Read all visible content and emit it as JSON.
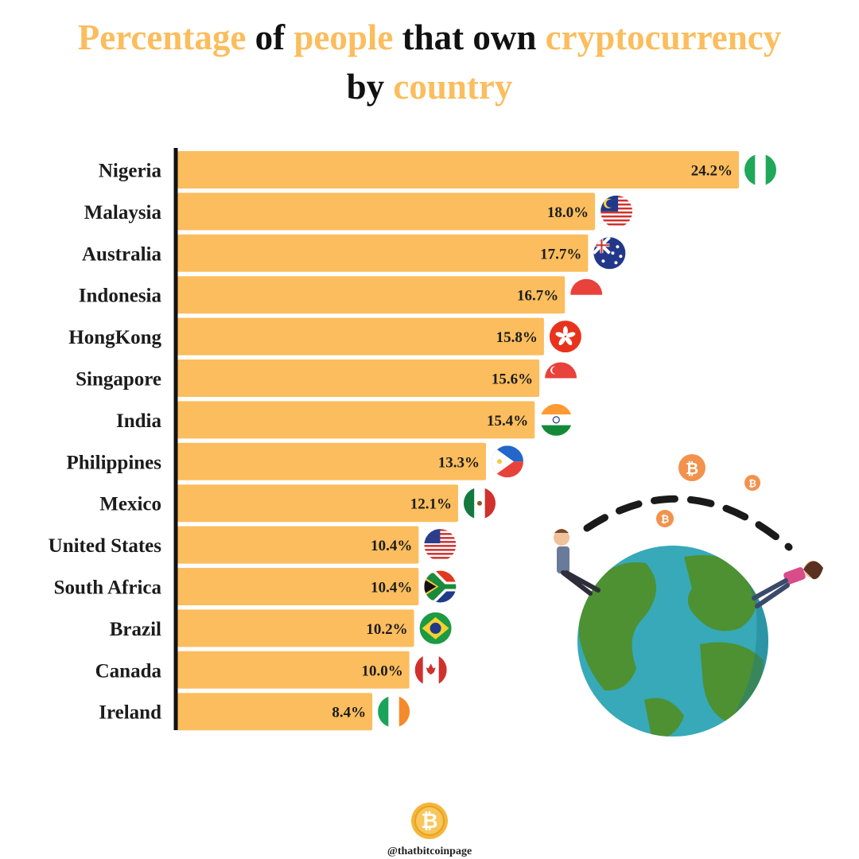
{
  "title": {
    "line1": [
      {
        "text": "Percentage",
        "highlight": true
      },
      {
        "text": " of ",
        "highlight": false
      },
      {
        "text": "people",
        "highlight": true
      },
      {
        "text": " that own ",
        "highlight": false
      },
      {
        "text": "cryptocurrency",
        "highlight": true
      }
    ],
    "line2": [
      {
        "text": "by ",
        "highlight": false
      },
      {
        "text": "country",
        "highlight": true
      }
    ]
  },
  "colors": {
    "bar": "#fbbd5d",
    "highlight_text": "#fbbd5d",
    "axis": "#111111",
    "text": "#1c1c1c"
  },
  "chart_data": {
    "type": "bar",
    "orientation": "horizontal",
    "categories": [
      "Nigeria",
      "Malaysia",
      "Australia",
      "Indonesia",
      "HongKong",
      "Singapore",
      "India",
      "Philippines",
      "Mexico",
      "United States",
      "South Africa",
      "Brazil",
      "Canada",
      "Ireland"
    ],
    "values": [
      24.2,
      18.0,
      17.7,
      16.7,
      15.8,
      15.6,
      15.4,
      13.3,
      12.1,
      10.4,
      10.4,
      10.2,
      10.0,
      8.4
    ],
    "value_labels": [
      "24.2%",
      "18.0%",
      "17.7%",
      "16.7%",
      "15.8%",
      "15.6%",
      "15.4%",
      "13.3%",
      "12.1%",
      "10.4%",
      "10.4%",
      "10.2%",
      "10.0%",
      "8.4%"
    ],
    "flags": [
      "nigeria-flag-icon",
      "malaysia-flag-icon",
      "australia-flag-icon",
      "indonesia-flag-icon",
      "hongkong-flag-icon",
      "singapore-flag-icon",
      "india-flag-icon",
      "philippines-flag-icon",
      "mexico-flag-icon",
      "united-states-flag-icon",
      "south-africa-flag-icon",
      "brazil-flag-icon",
      "canada-flag-icon",
      "ireland-flag-icon"
    ],
    "xlim": [
      0,
      24.2
    ],
    "grid": false,
    "legend": "none"
  },
  "illustration": {
    "globe_icon": "globe-with-people-icon",
    "coin_icon": "bitcoin-coin-icon"
  },
  "footer": {
    "logo_icon": "bitcoin-logo-icon",
    "handle": "@thatbitcoinpage"
  }
}
